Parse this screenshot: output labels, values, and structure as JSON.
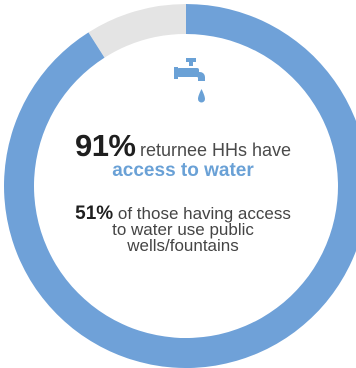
{
  "chart_data": {
    "type": "pie",
    "series": [
      {
        "values": [
          91,
          9
        ]
      }
    ],
    "colors": [
      "#6fa1d8",
      "#e4e4e4"
    ]
  },
  "icon": "water-tap-icon",
  "stat1": {
    "value": "91%",
    "text": "returnee HHs have",
    "highlight": "access to water"
  },
  "stat2": {
    "value": "51%",
    "text_a": "of those having access",
    "text_b": "to water use public",
    "text_c": "wells/fountains"
  }
}
